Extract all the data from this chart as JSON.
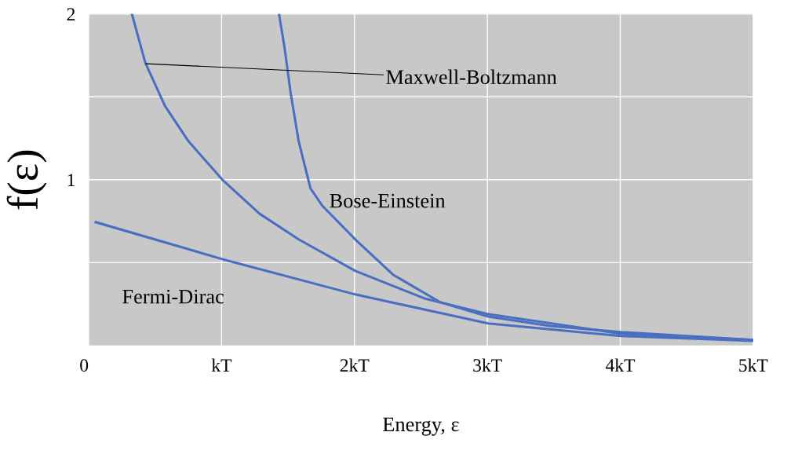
{
  "chart_data": {
    "type": "line",
    "xlabel": "Energy, ε",
    "ylabel": "f(ε)",
    "xlim": [
      0,
      5
    ],
    "ylim": [
      0,
      2
    ],
    "xticks": [
      0,
      {
        "value": 1,
        "label": "kT"
      },
      {
        "value": 2,
        "label": "2kT"
      },
      {
        "value": 3,
        "label": "3kT"
      },
      {
        "value": 4,
        "label": "4kT"
      },
      {
        "value": 5,
        "label": "5kT"
      }
    ],
    "yticks": [
      {
        "value": 0.5,
        "label": null
      },
      1,
      {
        "value": 1.5,
        "label": null
      },
      2
    ],
    "grid": true,
    "marker": "none",
    "line_style": "solid",
    "series": [
      {
        "color": "#4a6fc0",
        "x": [
          0.325,
          0.426,
          0.574,
          0.751,
          1.006,
          1.284,
          1.58,
          2.006,
          2.527,
          3.0,
          4.006,
          5.0
        ],
        "values": [
          2.0,
          1.706,
          1.445,
          1.232,
          1.0,
          0.796,
          0.64,
          0.45,
          0.284,
          0.19,
          0.071,
          0.033
        ]
      },
      {
        "color": "#4a6fc0",
        "x": [
          1.432,
          1.473,
          1.521,
          1.58,
          1.669,
          1.757,
          2.006,
          2.29,
          2.645,
          3.006,
          3.473,
          4.006,
          5.0
        ],
        "values": [
          2.0,
          1.801,
          1.517,
          1.232,
          0.948,
          0.844,
          0.64,
          0.427,
          0.261,
          0.175,
          0.118,
          0.081,
          0.033
        ]
      },
      {
        "color": "#4a6fc0",
        "x": [
          0.053,
          1.006,
          2.006,
          3.006,
          4.006,
          5.0
        ],
        "values": [
          0.744,
          0.521,
          0.308,
          0.133,
          0.057,
          0.028
        ]
      }
    ],
    "annotations": [
      {
        "text": "Maxwell-Boltzmann",
        "x": 0.43,
        "y": 1.7
      },
      "Bose-Einstein",
      "Fermi-Dirac"
    ]
  }
}
